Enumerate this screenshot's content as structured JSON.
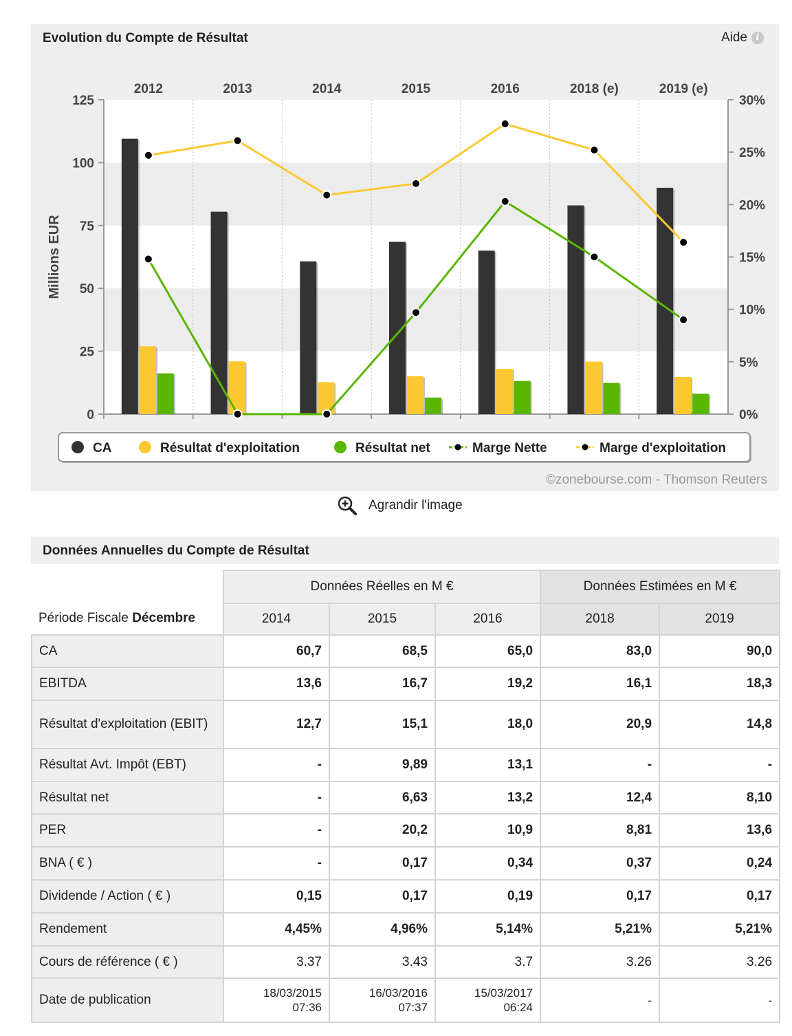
{
  "chart_panel": {
    "title": "Evolution du Compte de Résultat",
    "help_label": "Aide",
    "copyright": "©zonebourse.com - Thomson Reuters",
    "enlarge_label": "Agrandir l'image"
  },
  "chart_data": {
    "type": "bar",
    "categories": [
      "2012",
      "2013",
      "2014",
      "2015",
      "2016",
      "2018 (e)",
      "2019 (e)"
    ],
    "ylabel": "Millions EUR",
    "ylim": [
      0,
      125
    ],
    "y_ticks": [
      "0",
      "25",
      "50",
      "75",
      "100",
      "125"
    ],
    "y2lim": [
      0,
      30
    ],
    "y2_ticks": [
      "0%",
      "5%",
      "10%",
      "15%",
      "20%",
      "25%",
      "30%"
    ],
    "series": [
      {
        "name": "CA",
        "type": "bar",
        "color": "#333333",
        "values": [
          109.5,
          80.5,
          60.7,
          68.5,
          65.0,
          83.0,
          90.0
        ]
      },
      {
        "name": "Résultat d'exploitation",
        "type": "bar",
        "color": "#fcc832",
        "values": [
          27.0,
          21.0,
          12.7,
          15.1,
          18.0,
          20.9,
          14.8
        ]
      },
      {
        "name": "Résultat net",
        "type": "bar",
        "color": "#5ab600",
        "values": [
          16.2,
          0,
          0,
          6.6,
          13.2,
          12.4,
          8.1
        ]
      },
      {
        "name": "Marge Nette",
        "type": "line",
        "axis": "right",
        "color": "#5ab600",
        "values": [
          14.8,
          0,
          0,
          9.7,
          20.3,
          15.0,
          9.0
        ]
      },
      {
        "name": "Marge d'exploitation",
        "type": "line",
        "axis": "right",
        "color": "#fcc832",
        "values": [
          24.7,
          26.1,
          20.9,
          22.0,
          27.7,
          25.2,
          16.4
        ]
      }
    ],
    "legend": [
      "CA",
      "Résultat d'exploitation",
      "Résultat net",
      "Marge Nette",
      "Marge d'exploitation"
    ],
    "legend_position": "bottom",
    "grid": "alternating bands"
  },
  "table_panel": {
    "title": "Données Annuelles du Compte de Résultat",
    "period_prefix": "Période Fiscale",
    "period_month": "Décembre",
    "group_real": "Données Réelles en M €",
    "group_est": "Données Estimées en M €",
    "years": [
      "2014",
      "2015",
      "2016",
      "2018",
      "2019"
    ],
    "rows": [
      {
        "label": "CA",
        "values": [
          "60,7",
          "68,5",
          "65,0",
          "83,0",
          "90,0"
        ]
      },
      {
        "label": "EBITDA",
        "values": [
          "13,6",
          "16,7",
          "19,2",
          "16,1",
          "18,3"
        ]
      },
      {
        "label": "Résultat d'exploitation (EBIT)",
        "values": [
          "12,7",
          "15,1",
          "18,0",
          "20,9",
          "14,8"
        ]
      },
      {
        "label": "Résultat Avt. Impôt (EBT)",
        "values": [
          "-",
          "9,89",
          "13,1",
          "-",
          "-"
        ]
      },
      {
        "label": "Résultat net",
        "values": [
          "-",
          "6,63",
          "13,2",
          "12,4",
          "8,10"
        ]
      },
      {
        "label": "PER",
        "values": [
          "-",
          "20,2",
          "10,9",
          "8,81",
          "13,6"
        ]
      },
      {
        "label": "BNA ( € )",
        "values": [
          "-",
          "0,17",
          "0,34",
          "0,37",
          "0,24"
        ]
      },
      {
        "label": "Dividende / Action ( € )",
        "values": [
          "0,15",
          "0,17",
          "0,19",
          "0,17",
          "0,17"
        ]
      },
      {
        "label": "Rendement",
        "values": [
          "4,45%",
          "4,96%",
          "5,14%",
          "5,21%",
          "5,21%"
        ]
      },
      {
        "label": "Cours de référence ( € )",
        "values": [
          "3.37",
          "3.43",
          "3.7",
          "3.26",
          "3.26"
        ]
      }
    ],
    "pub_row": {
      "label": "Date de publication",
      "values": [
        {
          "date": "18/03/2015",
          "time": "07:36"
        },
        {
          "date": "16/03/2016",
          "time": "07:37"
        },
        {
          "date": "15/03/2017",
          "time": "06:24"
        },
        {
          "date": "-",
          "time": ""
        },
        {
          "date": "-",
          "time": ""
        }
      ]
    }
  }
}
